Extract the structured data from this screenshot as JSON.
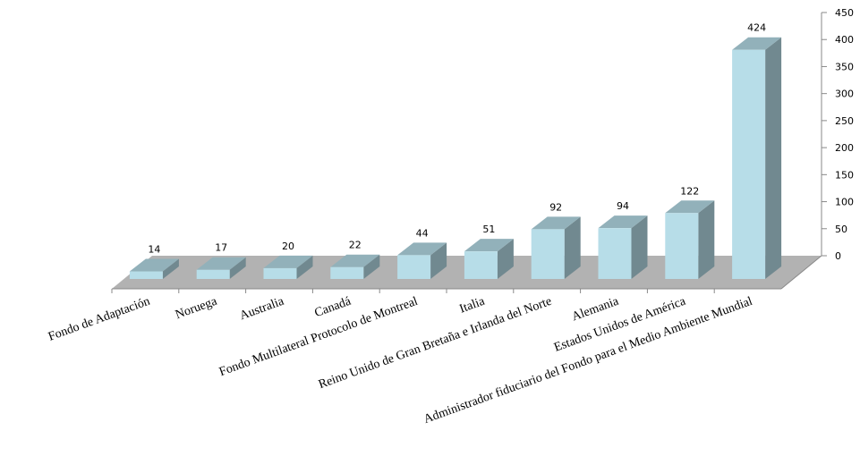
{
  "chart_data": {
    "type": "bar3d",
    "categories": [
      "Fondo de Adaptación",
      "Noruega",
      "Australia",
      "Canadá",
      "Fondo Multilateral Protocolo de Montreal",
      "Italia",
      "Reino Unido de Gran Bretaña e Irlanda del Norte",
      "Alemania",
      "Estados Unidos de América",
      "Administrador fiduciario del Fondo para el Medio Ambiente Mundial"
    ],
    "values": [
      14,
      17,
      20,
      22,
      44,
      51,
      92,
      94,
      122,
      424
    ],
    "color": "#b7dde8",
    "ylim": [
      0,
      450
    ],
    "yticks": [
      0,
      50,
      100,
      150,
      200,
      250,
      300,
      350,
      400,
      450
    ]
  }
}
